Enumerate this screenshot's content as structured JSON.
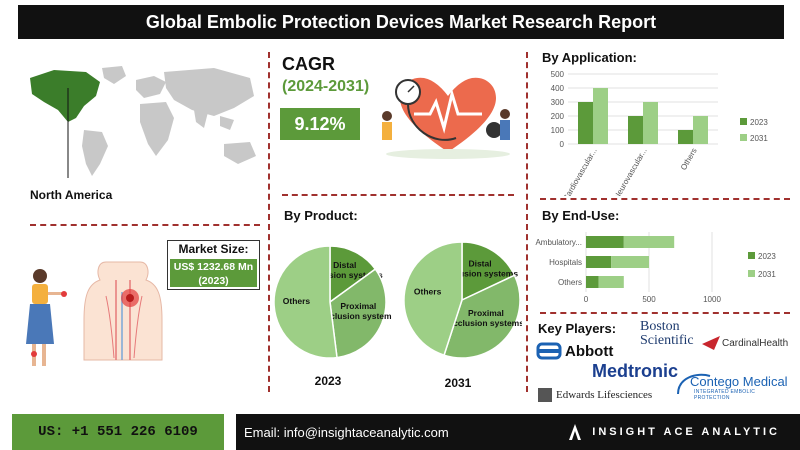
{
  "title": "Global Embolic Protection Devices Market Research Report",
  "region": "North America",
  "market_size": {
    "label": "Market Size:",
    "value": "US$ 1232.68 Mn (2023)"
  },
  "cagr": {
    "title": "CAGR",
    "period": "(2024-2031)",
    "value": "9.12%"
  },
  "sections": {
    "by_product": "By Product:",
    "by_application": "By Application:",
    "by_end_use": "By End-Use:",
    "key_players": "Key Players:"
  },
  "key_players": [
    "Boston Scientific",
    "Abbott",
    "CardinalHealth",
    "Medtronic",
    "Edwards Lifesciences",
    "Contego Medical"
  ],
  "contego_tagline": "INTEGRATED EMBOLIC PROTECTION",
  "footer": {
    "phone": "US: +1 551 226 6109",
    "email": "Email: info@insightaceanalytic.com",
    "brand": "INSIGHT ACE ANALYTIC"
  },
  "colors": {
    "dark_green": "#5c9a3a",
    "light_green": "#9dcf86",
    "mid_green": "#82b86a",
    "accent_red": "#a0312e"
  },
  "chart_data": [
    {
      "type": "bar",
      "title": "By Application:",
      "categories": [
        "Cardiovascular...",
        "Neurovascular...",
        "Others"
      ],
      "series": [
        {
          "name": "2023",
          "values": [
            300,
            200,
            100
          ]
        },
        {
          "name": "2031",
          "values": [
            400,
            300,
            200
          ]
        }
      ],
      "ylim": [
        0,
        500
      ],
      "yticks": [
        0,
        100,
        200,
        300,
        400,
        500
      ],
      "legend": "right"
    },
    {
      "type": "bar",
      "orientation": "horizontal",
      "stacked": true,
      "title": "By End-Use:",
      "categories": [
        "Ambulatory...",
        "Hospitals",
        "Others"
      ],
      "series": [
        {
          "name": "2023",
          "values": [
            300,
            200,
            100
          ]
        },
        {
          "name": "2031",
          "values": [
            400,
            300,
            200
          ]
        }
      ],
      "xlim": [
        0,
        1000
      ],
      "xticks": [
        0,
        500,
        1000
      ],
      "legend": "right"
    },
    {
      "type": "pie",
      "title": "2023",
      "labels": [
        "Distal occlusion systems",
        "Proximal occlusion systems",
        "Others"
      ],
      "values": [
        15,
        33,
        52
      ]
    },
    {
      "type": "pie",
      "title": "2031",
      "labels": [
        "Distal occlusion systems",
        "Proximal occlusion systems",
        "Others"
      ],
      "values": [
        18,
        37,
        45
      ]
    }
  ]
}
